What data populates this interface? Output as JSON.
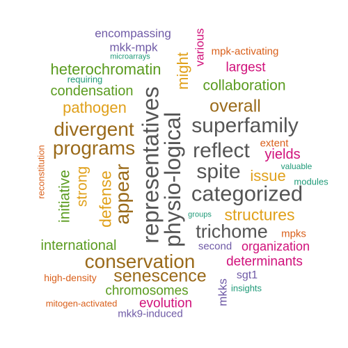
{
  "words": [
    {
      "text": "encompassing",
      "color": "#6f5aa6"
    },
    {
      "text": "mkk-mpk",
      "color": "#6f5aa6"
    },
    {
      "text": "microarrays",
      "color": "#1f9a78"
    },
    {
      "text": "heterochromatin",
      "color": "#5a9b1f"
    },
    {
      "text": "requiring",
      "color": "#1f9a78"
    },
    {
      "text": "condensation",
      "color": "#5a9b1f"
    },
    {
      "text": "pathogen",
      "color": "#e0a01a"
    },
    {
      "text": "divergent",
      "color": "#9a6a1a"
    },
    {
      "text": "programs",
      "color": "#9a6a1a"
    },
    {
      "text": "reconstitution",
      "color": "#d95f1a"
    },
    {
      "text": "initiative",
      "color": "#5a9b1f"
    },
    {
      "text": "strong",
      "color": "#e0a01a"
    },
    {
      "text": "defense",
      "color": "#e0a01a"
    },
    {
      "text": "appear",
      "color": "#9a6a1a"
    },
    {
      "text": "representatives",
      "color": "#555555"
    },
    {
      "text": "physio-logical",
      "color": "#555555"
    },
    {
      "text": "might",
      "color": "#e0a01a"
    },
    {
      "text": "various",
      "color": "#d0107a"
    },
    {
      "text": "mpk-activating",
      "color": "#d95f1a"
    },
    {
      "text": "largest",
      "color": "#d0107a"
    },
    {
      "text": "collaboration",
      "color": "#5a9b1f"
    },
    {
      "text": "overall",
      "color": "#9a6a1a"
    },
    {
      "text": "superfamily",
      "color": "#555555"
    },
    {
      "text": "reflect",
      "color": "#555555"
    },
    {
      "text": "extent",
      "color": "#d95f1a"
    },
    {
      "text": "yields",
      "color": "#d0107a"
    },
    {
      "text": "spite",
      "color": "#555555"
    },
    {
      "text": "issue",
      "color": "#e0a01a"
    },
    {
      "text": "valuable",
      "color": "#1f9a78"
    },
    {
      "text": "modules",
      "color": "#1f9a78"
    },
    {
      "text": "categorized",
      "color": "#555555"
    },
    {
      "text": "groups",
      "color": "#1f9a78"
    },
    {
      "text": "structures",
      "color": "#e0a01a"
    },
    {
      "text": "trichome",
      "color": "#555555"
    },
    {
      "text": "mpks",
      "color": "#d95f1a"
    },
    {
      "text": "international",
      "color": "#5a9b1f"
    },
    {
      "text": "second",
      "color": "#6f5aa6"
    },
    {
      "text": "organization",
      "color": "#d0107a"
    },
    {
      "text": "conservation",
      "color": "#9a6a1a"
    },
    {
      "text": "determinants",
      "color": "#d0107a"
    },
    {
      "text": "senescence",
      "color": "#9a6a1a"
    },
    {
      "text": "high-density",
      "color": "#d95f1a"
    },
    {
      "text": "sgt1",
      "color": "#6f5aa6"
    },
    {
      "text": "chromosomes",
      "color": "#5a9b1f"
    },
    {
      "text": "insights",
      "color": "#1f9a78"
    },
    {
      "text": "mkks",
      "color": "#6f5aa6"
    },
    {
      "text": "mitogen-activated",
      "color": "#d95f1a"
    },
    {
      "text": "evolution",
      "color": "#d0107a"
    },
    {
      "text": "mkk9-induced",
      "color": "#6f5aa6"
    }
  ]
}
